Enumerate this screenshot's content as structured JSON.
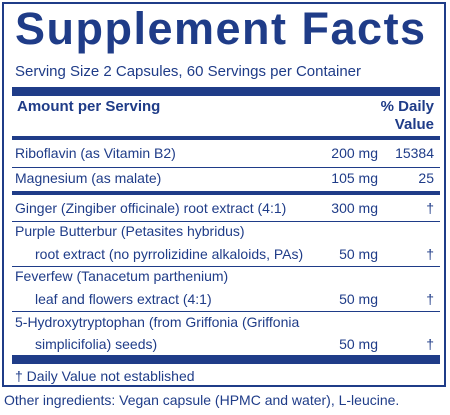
{
  "title": "Supplement Facts",
  "serving_info": "Serving Size 2 Capsules, 60 Servings per Container",
  "header": {
    "amount_label": "Amount per Serving",
    "dv_label_line1": "% Daily",
    "dv_label_line2": "Value"
  },
  "rows": [
    {
      "name": "Riboflavin (as Vitamin B2)",
      "amount": "200 mg",
      "dv": "15384"
    },
    {
      "name": "Magnesium (as malate)",
      "amount": "105 mg",
      "dv": "25"
    },
    {
      "name": "Ginger (Zingiber officinale) root extract (4:1)",
      "amount": "300 mg",
      "dv": "†"
    },
    {
      "name_line1": "Purple Butterbur (Petasites hybridus)",
      "name_line2": "root extract (no pyrrolizidine alkaloids, PAs)",
      "amount": "50 mg",
      "dv": "†"
    },
    {
      "name_line1": "Feverfew (Tanacetum parthenium)",
      "name_line2": "leaf and flowers extract (4:1)",
      "amount": "50 mg",
      "dv": "†"
    },
    {
      "name_line1": "5-Hydroxytryptophan (from Griffonia (Griffonia",
      "name_line2": "simplicifolia) seeds)",
      "amount": "50 mg",
      "dv": "†"
    }
  ],
  "footnote": "† Daily Value not established",
  "other_ingredients": "Other ingredients: Vegan capsule (HPMC and water), L-leucine.",
  "colors": {
    "ink": "#1f3c88",
    "background": "#ffffff"
  }
}
